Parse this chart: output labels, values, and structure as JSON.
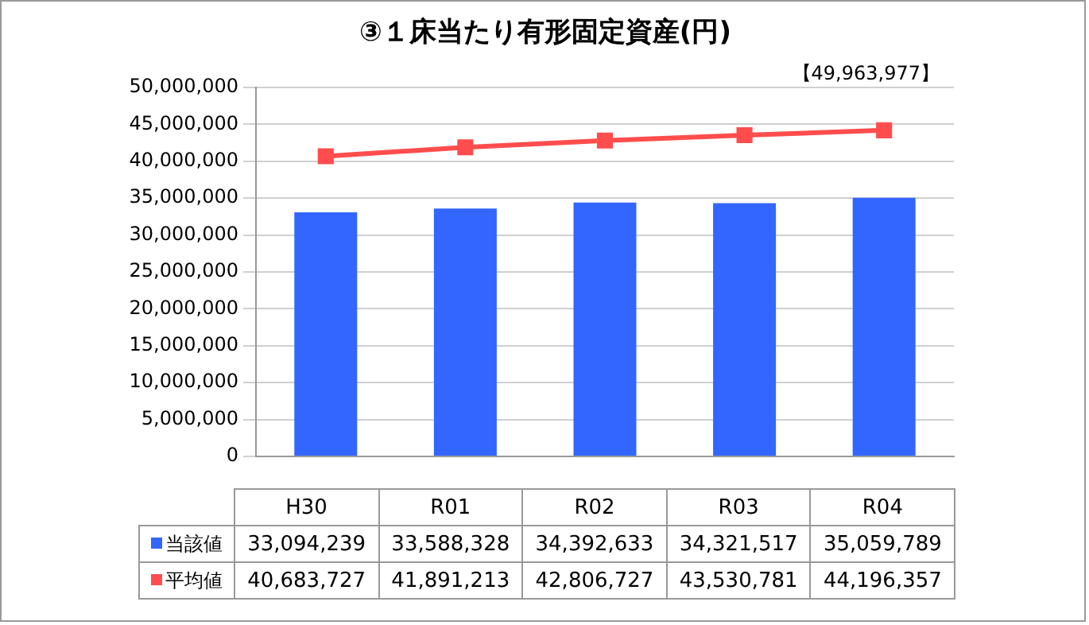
{
  "chart_data": {
    "type": "bar",
    "title": "③１床当たり有形固定資産(円)",
    "annotations": [
      "【49,963,977】"
    ],
    "categories": [
      "H30",
      "R01",
      "R02",
      "R03",
      "R04"
    ],
    "series": [
      {
        "name": "当該値",
        "color": "#3366ff",
        "values": [
          33094239,
          33588328,
          34392633,
          34321517,
          35059789
        ],
        "value_labels": [
          "33,094,239",
          "33,588,328",
          "34,392,633",
          "34,321,517",
          "35,059,789"
        ]
      },
      {
        "name": "平均値",
        "type": "line",
        "color": "#ff4d4d",
        "marker": "square",
        "values": [
          40683727,
          41891213,
          42806727,
          43530781,
          44196357
        ],
        "value_labels": [
          "40,683,727",
          "41,891,213",
          "42,806,727",
          "43,530,781",
          "44,196,357"
        ]
      }
    ],
    "ylim": [
      0,
      50000000
    ],
    "yticks": [
      0,
      {
        "value": 5000000,
        "label": "5,000,000"
      },
      {
        "value": 10000000,
        "label": "10,000,000"
      },
      {
        "value": 15000000,
        "label": "15,000,000"
      },
      {
        "value": 20000000,
        "label": "20,000,000"
      },
      {
        "value": 25000000,
        "label": "25,000,000"
      },
      {
        "value": 30000000,
        "label": "30,000,000"
      },
      {
        "value": 35000000,
        "label": "35,000,000"
      },
      {
        "value": 40000000,
        "label": "40,000,000"
      },
      {
        "value": 45000000,
        "label": "45,000,000"
      },
      {
        "value": 50000000,
        "label": "50,000,000"
      }
    ],
    "grid": "y",
    "legend": "bottom left"
  }
}
